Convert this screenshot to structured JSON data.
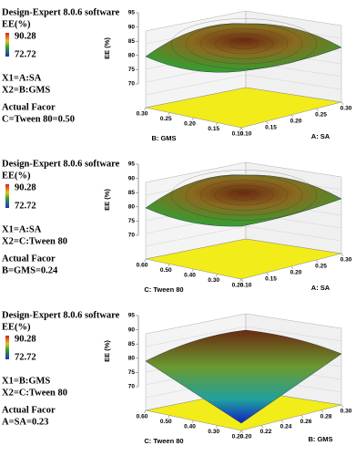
{
  "panels": [
    {
      "software": "Design-Expert 8.0.6 software",
      "legend_title": "EE(%)",
      "legend_max": "90.28",
      "legend_min": "72.72",
      "x1": "X1=A:SA",
      "x2": "X2=B:GMS",
      "actual_factor_label": "Actual Facor",
      "actual_factor": "C=Tween 80=0.50",
      "z_label": "EE (%)",
      "z_ticks": [
        "95",
        "90",
        "85",
        "80",
        "75",
        "70"
      ],
      "left_axis": {
        "label": "B: GMS",
        "ticks": [
          "0.30",
          "0.25",
          "0.20",
          "0.15",
          "0.10"
        ]
      },
      "right_axis": {
        "label": "A: SA",
        "ticks": [
          "0.10",
          "0.15",
          "0.20",
          "0.25",
          "0.30"
        ]
      }
    },
    {
      "software": "Design-Expert 8.0.6 software",
      "legend_title": "EE(%)",
      "legend_max": "90.28",
      "legend_min": "72.72",
      "x1": "X1=A:SA",
      "x2": "X2=C:Tween 80",
      "actual_factor_label": "Actual Facor",
      "actual_factor": "B=GMS=0.24",
      "z_label": "EE (%)",
      "z_ticks": [
        "95",
        "90",
        "85",
        "80",
        "75",
        "70"
      ],
      "left_axis": {
        "label": "C: Tween 80",
        "ticks": [
          "0.60",
          "0.50",
          "0.40",
          "0.30",
          "0.20"
        ]
      },
      "right_axis": {
        "label": "A: SA",
        "ticks": [
          "0.10",
          "0.15",
          "0.20",
          "0.25",
          "0.30"
        ]
      }
    },
    {
      "software": "Design-Expert 8.0.6 software",
      "legend_title": "EE(%)",
      "legend_max": "90.28",
      "legend_min": "72.72",
      "x1": "X1=B:GMS",
      "x2": "X2=C:Tween 80",
      "actual_factor_label": "Actual Facor",
      "actual_factor": "A=SA=0.23",
      "z_label": "EE (%)",
      "z_ticks": [
        "95",
        "90",
        "85",
        "80",
        "75",
        "70"
      ],
      "left_axis": {
        "label": "C: Tween 80",
        "ticks": [
          "0.60",
          "0.50",
          "0.40",
          "0.30",
          "0.20"
        ]
      },
      "right_axis": {
        "label": "B: GMS",
        "ticks": [
          "0.20",
          "0.22",
          "0.24",
          "0.26",
          "0.28",
          "0.30"
        ]
      }
    }
  ]
}
